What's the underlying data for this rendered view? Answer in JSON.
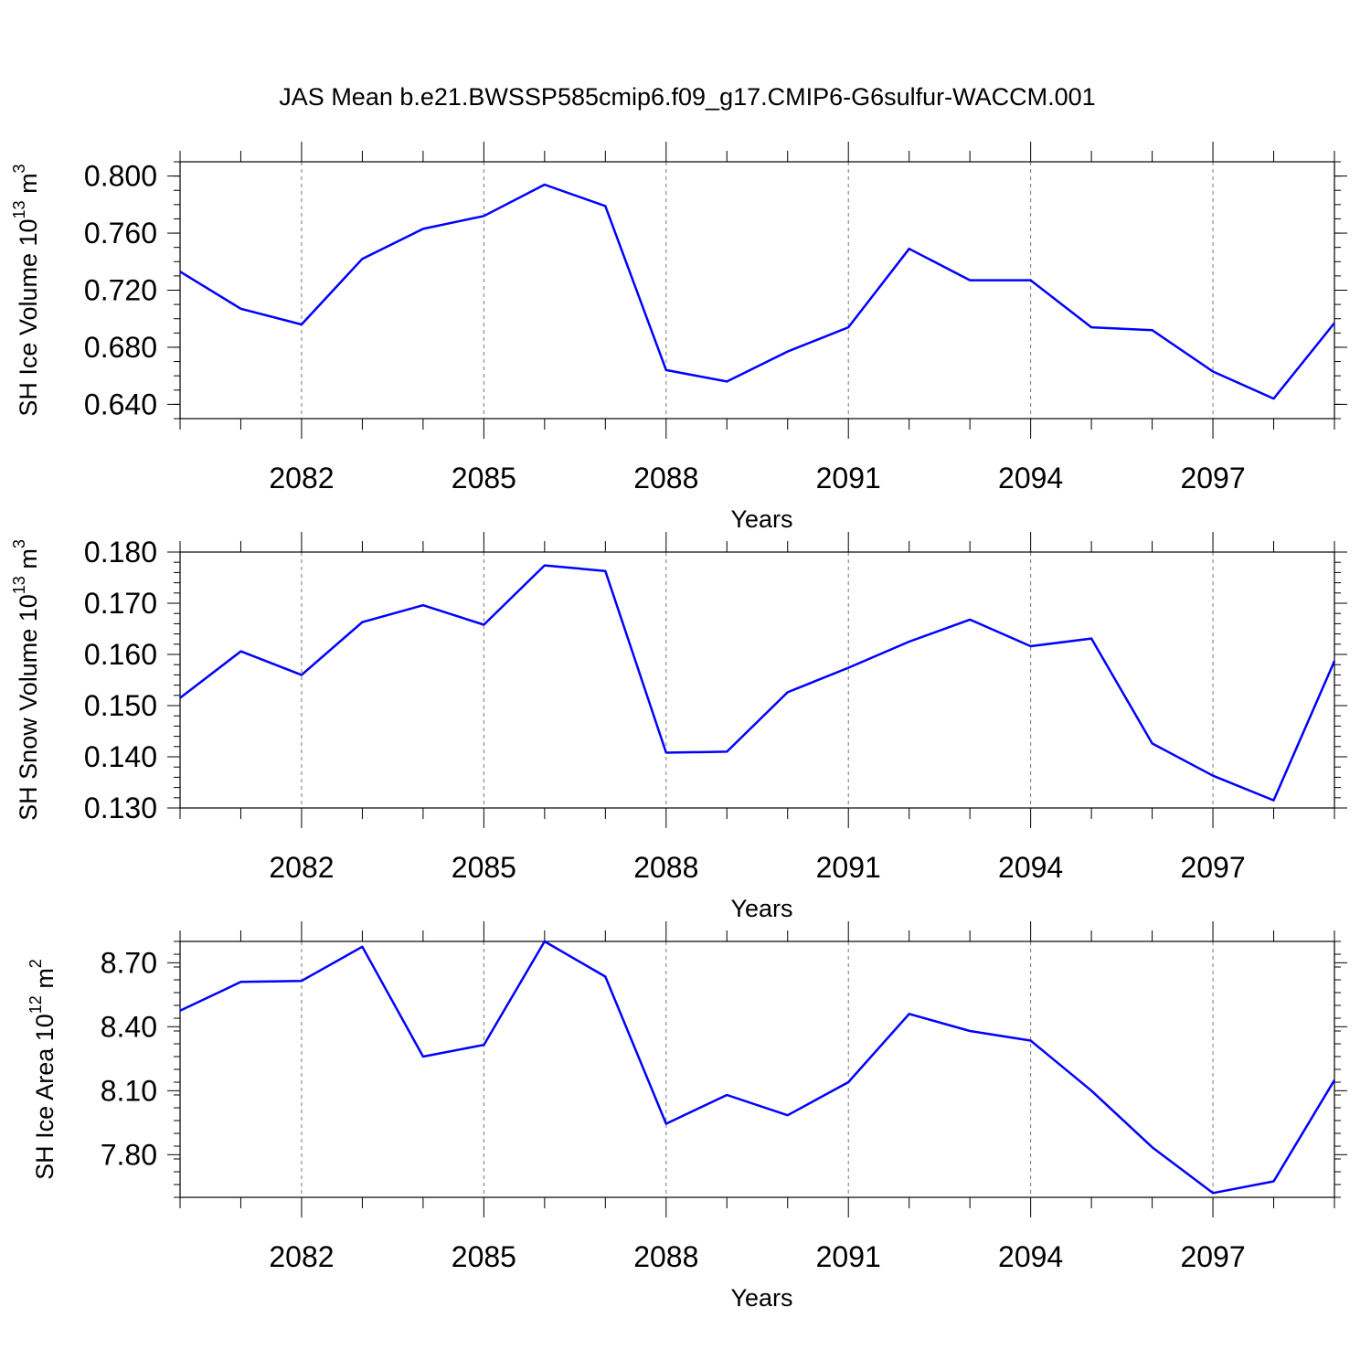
{
  "title": "JAS Mean b.e21.BWSSP585cmip6.f09_g17.CMIP6-G6sulfur-WACCM.001",
  "line_color": "#0000ff",
  "chart_data": [
    {
      "type": "line",
      "xlabel": "Years",
      "ylabel_main": "SH Ice Volume 10",
      "ylabel_exp": "13",
      "ylabel_unit": " m",
      "ylabel_unit_exp": "3",
      "xlim": [
        2080,
        2099
      ],
      "ylim": [
        0.63,
        0.81
      ],
      "xticks": [
        2082,
        2085,
        2088,
        2091,
        2094,
        2097
      ],
      "yticks": [
        0.64,
        0.68,
        0.72,
        0.76,
        0.8
      ],
      "ytick_labels": [
        "0.640",
        "0.680",
        "0.720",
        "0.760",
        "0.800"
      ],
      "yminor_step": 0.01,
      "grid": "vertical dashed at labeled years",
      "x": [
        2080,
        2081,
        2082,
        2083,
        2084,
        2085,
        2086,
        2087,
        2088,
        2089,
        2090,
        2091,
        2092,
        2093,
        2094,
        2095,
        2096,
        2097,
        2098,
        2099
      ],
      "values": [
        0.733,
        0.707,
        0.696,
        0.742,
        0.763,
        0.772,
        0.794,
        0.779,
        0.664,
        0.656,
        0.677,
        0.694,
        0.749,
        0.727,
        0.727,
        0.694,
        0.692,
        0.663,
        0.644,
        0.697
      ]
    },
    {
      "type": "line",
      "xlabel": "Years",
      "ylabel_main": "SH Snow Volume 10",
      "ylabel_exp": "13",
      "ylabel_unit": " m",
      "ylabel_unit_exp": "3",
      "xlim": [
        2080,
        2099
      ],
      "ylim": [
        0.13,
        0.18
      ],
      "xticks": [
        2082,
        2085,
        2088,
        2091,
        2094,
        2097
      ],
      "yticks": [
        0.13,
        0.14,
        0.15,
        0.16,
        0.17,
        0.18
      ],
      "ytick_labels": [
        "0.130",
        "0.140",
        "0.150",
        "0.160",
        "0.170",
        "0.180"
      ],
      "yminor_step": 0.002,
      "grid": "vertical dashed at labeled years",
      "x": [
        2080,
        2081,
        2082,
        2083,
        2084,
        2085,
        2086,
        2087,
        2088,
        2089,
        2090,
        2091,
        2092,
        2093,
        2094,
        2095,
        2096,
        2097,
        2098,
        2099
      ],
      "values": [
        0.1515,
        0.1606,
        0.156,
        0.1663,
        0.1696,
        0.1658,
        0.1774,
        0.1763,
        0.1408,
        0.141,
        0.1526,
        0.1574,
        0.1625,
        0.1668,
        0.1616,
        0.1631,
        0.1426,
        0.1363,
        0.1315,
        0.1587
      ]
    },
    {
      "type": "line",
      "xlabel": "Years",
      "ylabel_main": "SH Ice Area 10",
      "ylabel_exp": "12",
      "ylabel_unit": " m",
      "ylabel_unit_exp": "2",
      "xlim": [
        2080,
        2099
      ],
      "ylim": [
        7.6,
        8.8
      ],
      "xticks": [
        2082,
        2085,
        2088,
        2091,
        2094,
        2097
      ],
      "yticks": [
        7.8,
        8.1,
        8.4,
        8.7
      ],
      "ytick_labels": [
        "7.80",
        "8.10",
        "8.40",
        "8.70"
      ],
      "yminor_step": 0.06,
      "grid": "vertical dashed at labeled years",
      "x": [
        2080,
        2081,
        2082,
        2083,
        2084,
        2085,
        2086,
        2087,
        2088,
        2089,
        2090,
        2091,
        2092,
        2093,
        2094,
        2095,
        2096,
        2097,
        2098,
        2099
      ],
      "values": [
        8.475,
        8.61,
        8.615,
        8.775,
        8.26,
        8.315,
        8.8,
        8.635,
        7.945,
        8.08,
        7.985,
        8.14,
        8.46,
        8.38,
        8.335,
        8.1,
        7.835,
        7.62,
        7.675,
        8.15
      ]
    }
  ]
}
